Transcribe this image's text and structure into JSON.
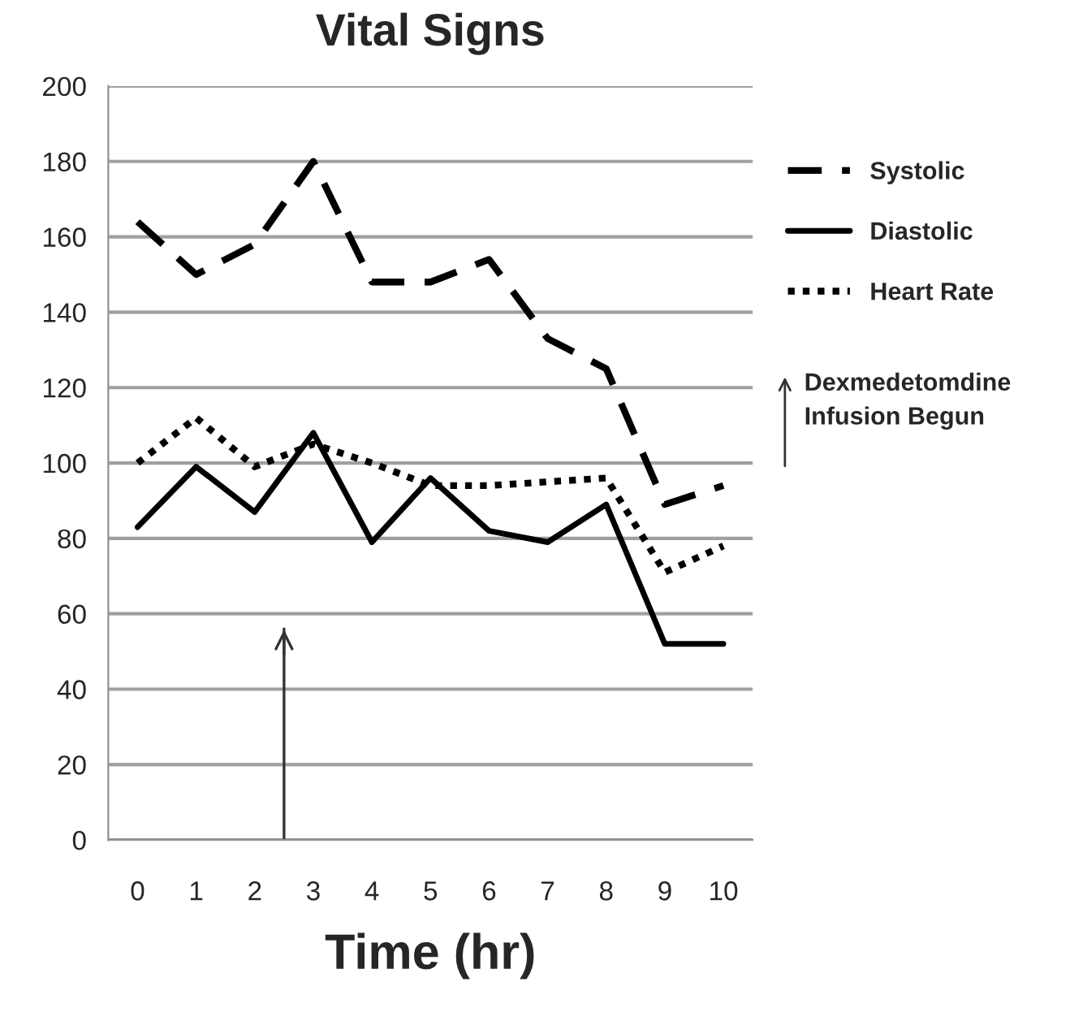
{
  "chart_data": {
    "type": "line",
    "title": "Vital Signs",
    "xlabel": "Time (hr)",
    "x": [
      0,
      1,
      2,
      3,
      4,
      5,
      6,
      7,
      8,
      9,
      10
    ],
    "series": [
      {
        "name": "Systolic",
        "color": "#000000",
        "line_style": "dashed",
        "values": [
          164,
          150,
          158,
          180,
          148,
          148,
          154,
          133,
          125,
          89,
          94
        ]
      },
      {
        "name": "Diastolic",
        "color": "#000000",
        "line_style": "solid",
        "values": [
          83,
          99,
          87,
          108,
          79,
          96,
          82,
          79,
          89,
          52,
          52
        ]
      },
      {
        "name": "Heart Rate",
        "color": "#000000",
        "line_style": "dotted",
        "values": [
          100,
          112,
          99,
          105,
          100,
          94,
          94,
          95,
          96,
          71,
          78
        ]
      }
    ],
    "ref_lines": [
      {
        "axis": "x",
        "value": 2.5,
        "label": "Dexmedetomdine\nInfusion Begun",
        "color": "#333333"
      }
    ],
    "xlim": [
      -0.5,
      10.5
    ],
    "xticks": [
      0,
      1,
      2,
      3,
      4,
      5,
      6,
      7,
      8,
      9,
      10
    ],
    "ylim": [
      0,
      200
    ],
    "yticks": [
      0,
      20,
      40,
      60,
      80,
      100,
      120,
      140,
      160,
      180,
      200
    ],
    "grid": "y",
    "legend": "right",
    "marker": "none"
  }
}
